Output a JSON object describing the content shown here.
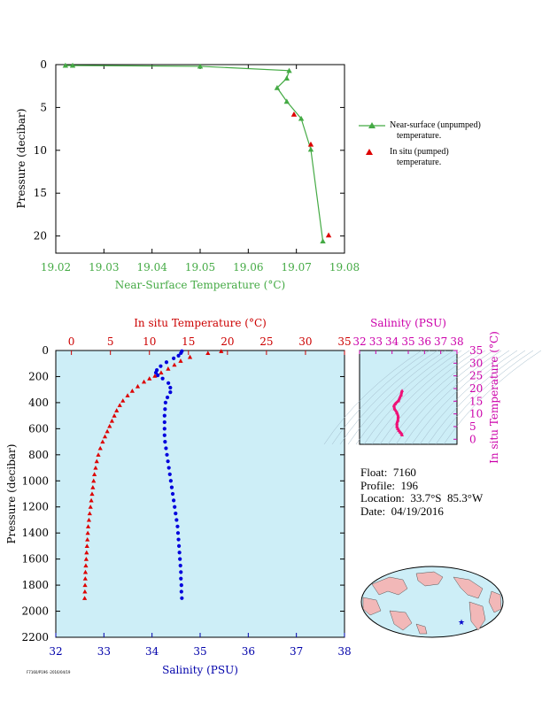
{
  "chart_data": [
    {
      "type": "line",
      "title": "",
      "xlabel": "Near-Surface Temperature (°C)",
      "ylabel": "Pressure (decibar)",
      "xlim": [
        19.02,
        19.08
      ],
      "ylim": [
        0,
        22
      ],
      "y_inverted": true,
      "xticks": [
        "19.02",
        "19.03",
        "19.04",
        "19.05",
        "19.06",
        "19.07",
        "19.08"
      ],
      "yticks": [
        "0",
        "5",
        "10",
        "15",
        "20"
      ],
      "series": [
        {
          "name": "Near-surface (unpumped) temperature.",
          "color": "#44aa44",
          "marker": "triangle",
          "x": [
            19.022,
            19.0235,
            19.05,
            19.0685,
            19.068,
            19.066,
            19.068,
            19.071,
            19.073,
            19.0755
          ],
          "y": [
            0.1,
            0.1,
            0.2,
            0.7,
            1.6,
            2.7,
            4.3,
            6.3,
            9.9,
            20.6
          ]
        },
        {
          "name": "In situ (pumped) temperature.",
          "color": "#dd0000",
          "marker": "triangle",
          "x": [
            19.0695,
            19.073,
            19.0767
          ],
          "y": [
            5.8,
            9.3,
            19.9
          ]
        }
      ],
      "legend": {
        "position": "right",
        "entries": [
          {
            "line1": "Near-surface (unpumped)",
            "line2": "temperature.",
            "color": "#44aa44"
          },
          {
            "line1": "In situ (pumped)",
            "line2": "temperature.",
            "color": "#dd0000"
          }
        ]
      }
    },
    {
      "type": "scatter",
      "ylabel": "Pressure (decibar)",
      "ylim": [
        0,
        2200
      ],
      "y_inverted": true,
      "yticks": [
        "0",
        "200",
        "400",
        "600",
        "800",
        "1000",
        "1200",
        "1400",
        "1600",
        "1800",
        "2000",
        "2200"
      ],
      "x_bottom": {
        "label": "Salinity (PSU)",
        "range": [
          32,
          38
        ],
        "ticks": [
          "32",
          "33",
          "34",
          "35",
          "36",
          "37",
          "38"
        ],
        "color": "#0000aa"
      },
      "x_top": {
        "label": "In situ Temperature (°C)",
        "range": [
          -2,
          35
        ],
        "ticks": [
          "0",
          "5",
          "10",
          "15",
          "20",
          "25",
          "30",
          "35"
        ],
        "color": "#cc0000"
      },
      "background": "#cdeef7",
      "series": [
        {
          "name": "Temperature",
          "color": "#dd0000",
          "marker": "triangle",
          "axis": "top",
          "points": [
            [
              19.2,
              5
            ],
            [
              17.5,
              20
            ],
            [
              15.2,
              50
            ],
            [
              14.0,
              80
            ],
            [
              13.2,
              110
            ],
            [
              12.4,
              140
            ],
            [
              11.5,
              170
            ],
            [
              10.7,
              195
            ],
            [
              10.0,
              215
            ],
            [
              9.3,
              240
            ],
            [
              8.5,
              275
            ],
            [
              7.8,
              310
            ],
            [
              7.2,
              345
            ],
            [
              6.6,
              385
            ],
            [
              6.2,
              420
            ],
            [
              5.8,
              460
            ],
            [
              5.5,
              500
            ],
            [
              5.2,
              540
            ],
            [
              4.9,
              580
            ],
            [
              4.6,
              620
            ],
            [
              4.3,
              660
            ],
            [
              4.0,
              700
            ],
            [
              3.7,
              750
            ],
            [
              3.45,
              800
            ],
            [
              3.25,
              850
            ],
            [
              3.1,
              900
            ],
            [
              2.95,
              950
            ],
            [
              2.85,
              1000
            ],
            [
              2.75,
              1050
            ],
            [
              2.65,
              1100
            ],
            [
              2.55,
              1150
            ],
            [
              2.45,
              1200
            ],
            [
              2.35,
              1250
            ],
            [
              2.25,
              1300
            ],
            [
              2.15,
              1350
            ],
            [
              2.1,
              1400
            ],
            [
              2.05,
              1450
            ],
            [
              2.0,
              1500
            ],
            [
              1.95,
              1550
            ],
            [
              1.9,
              1600
            ],
            [
              1.85,
              1650
            ],
            [
              1.8,
              1700
            ],
            [
              1.78,
              1750
            ],
            [
              1.75,
              1800
            ],
            [
              1.73,
              1850
            ],
            [
              1.7,
              1900
            ]
          ]
        },
        {
          "name": "Salinity",
          "color": "#0000dd",
          "marker": "circle",
          "axis": "bottom",
          "points": [
            [
              34.62,
              5
            ],
            [
              34.6,
              20
            ],
            [
              34.55,
              40
            ],
            [
              34.45,
              60
            ],
            [
              34.3,
              90
            ],
            [
              34.18,
              120
            ],
            [
              34.1,
              150
            ],
            [
              34.08,
              170
            ],
            [
              34.12,
              190
            ],
            [
              34.22,
              215
            ],
            [
              34.34,
              250
            ],
            [
              34.38,
              285
            ],
            [
              34.38,
              320
            ],
            [
              34.32,
              360
            ],
            [
              34.28,
              400
            ],
            [
              34.27,
              450
            ],
            [
              34.26,
              500
            ],
            [
              34.26,
              550
            ],
            [
              34.26,
              600
            ],
            [
              34.26,
              650
            ],
            [
              34.27,
              700
            ],
            [
              34.29,
              750
            ],
            [
              34.31,
              800
            ],
            [
              34.33,
              850
            ],
            [
              34.35,
              900
            ],
            [
              34.37,
              950
            ],
            [
              34.39,
              1000
            ],
            [
              34.41,
              1050
            ],
            [
              34.43,
              1100
            ],
            [
              34.45,
              1150
            ],
            [
              34.47,
              1200
            ],
            [
              34.49,
              1250
            ],
            [
              34.51,
              1300
            ],
            [
              34.53,
              1350
            ],
            [
              34.54,
              1400
            ],
            [
              34.55,
              1450
            ],
            [
              34.56,
              1500
            ],
            [
              34.57,
              1550
            ],
            [
              34.58,
              1600
            ],
            [
              34.59,
              1650
            ],
            [
              34.6,
              1700
            ],
            [
              34.6,
              1750
            ],
            [
              34.61,
              1800
            ],
            [
              34.61,
              1850
            ],
            [
              34.62,
              1900
            ]
          ]
        }
      ]
    },
    {
      "type": "scatter",
      "title": "",
      "xlabel": "Salinity (PSU)",
      "ylabel": "In situ Temperature (°C)",
      "xlim": [
        32,
        38
      ],
      "ylim": [
        -2,
        35
      ],
      "xticks": [
        "32",
        "33",
        "34",
        "35",
        "36",
        "37",
        "38"
      ],
      "yticks": [
        "0",
        "5",
        "10",
        "15",
        "20",
        "25",
        "30",
        "35"
      ],
      "color": "#cc00aa",
      "series": [
        {
          "name": "T-S",
          "color": "#ee1177",
          "points": [
            [
              34.62,
              19.2
            ],
            [
              34.56,
              17.5
            ],
            [
              34.4,
              15.2
            ],
            [
              34.2,
              14.0
            ],
            [
              34.12,
              13.2
            ],
            [
              34.15,
              12.0
            ],
            [
              34.3,
              10.5
            ],
            [
              34.38,
              9.0
            ],
            [
              34.36,
              7.5
            ],
            [
              34.3,
              6.2
            ],
            [
              34.3,
              5.0
            ],
            [
              34.35,
              4.2
            ],
            [
              34.42,
              3.4
            ],
            [
              34.5,
              2.8
            ],
            [
              34.58,
              2.2
            ],
            [
              34.62,
              1.7
            ]
          ]
        }
      ]
    }
  ],
  "info": {
    "float": "Float:  7160",
    "profile": "Profile:  196",
    "location": "Location:  33.7°S  85.3°W",
    "date": "Date:  04/19/2016"
  },
  "map": {
    "ocean_color": "#cdeef7",
    "land_color": "#f2b8b8",
    "marker_color": "#0000cc",
    "marker_icon": "star-icon"
  },
  "footer": "F7160/P196 ·2016/04/19"
}
